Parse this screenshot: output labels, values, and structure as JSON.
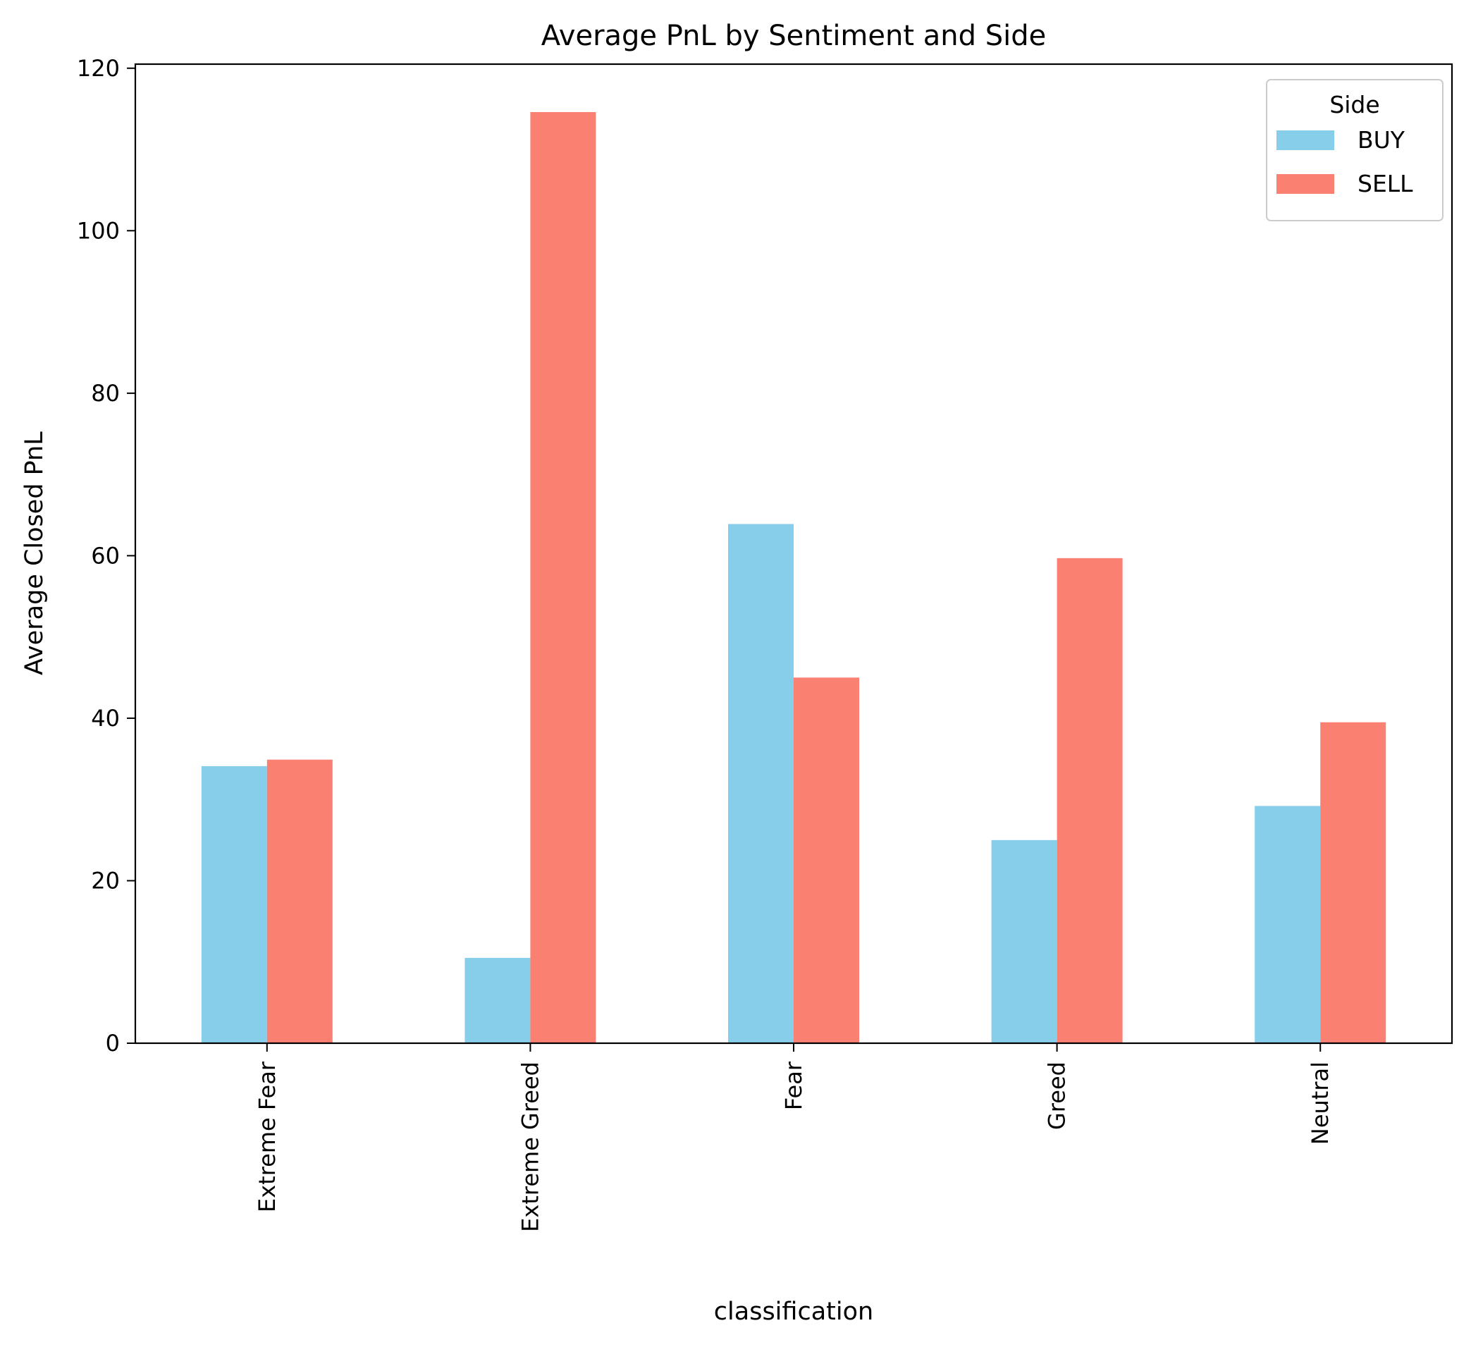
{
  "chart_data": {
    "type": "bar",
    "title": "Average PnL by Sentiment and Side",
    "xlabel": "classification",
    "ylabel": "Average Closed PnL",
    "categories": [
      "Extreme Fear",
      "Extreme Greed",
      "Fear",
      "Greed",
      "Neutral"
    ],
    "series": [
      {
        "name": "BUY",
        "color": "#87ceeb",
        "values": [
          34.1,
          10.5,
          63.9,
          25.0,
          29.2
        ]
      },
      {
        "name": "SELL",
        "color": "#fa8072",
        "values": [
          34.9,
          114.6,
          45.0,
          59.7,
          39.5
        ]
      }
    ],
    "ylim": [
      0,
      120.5
    ],
    "yticks": [
      "0",
      "20",
      "40",
      "60",
      "80",
      "100",
      "120"
    ],
    "legend": {
      "title": "Side",
      "position": "top-right"
    },
    "grid": false
  }
}
